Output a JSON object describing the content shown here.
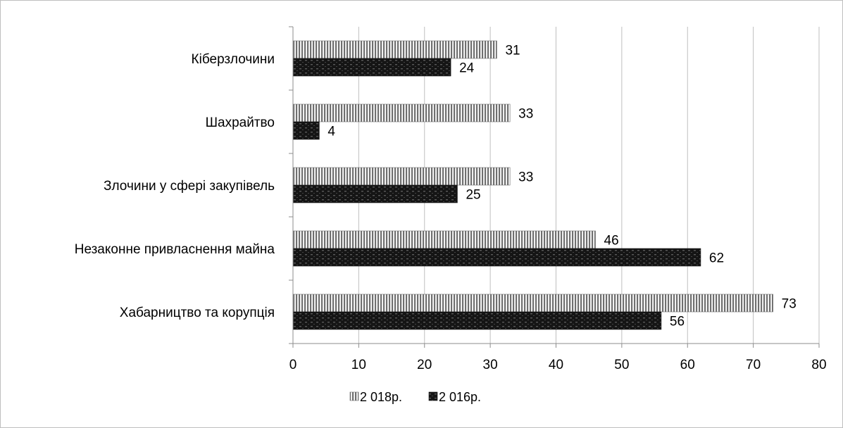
{
  "chart_data": {
    "type": "bar",
    "orientation": "horizontal",
    "categories": [
      "Кіберзлочини",
      "Шахрайтво",
      "Злочини у сфері закупівель",
      "Незаконне привласнення майна",
      "Хабарництво та корупція"
    ],
    "series": [
      {
        "name": "2 018р.",
        "values": [
          31,
          33,
          33,
          46,
          73
        ],
        "color": "#7f7f7f",
        "pattern": "vertical-stripes"
      },
      {
        "name": "2 016р.",
        "values": [
          24,
          4,
          25,
          62,
          56
        ],
        "color": "#1a1a1a",
        "pattern": "dark-dots"
      }
    ],
    "xlim": [
      0,
      80
    ],
    "xticks": [
      0,
      10,
      20,
      30,
      40,
      50,
      60,
      70,
      80
    ],
    "grid": "vertical",
    "legend": "bottom-center",
    "title": "",
    "xlabel": "",
    "ylabel": ""
  }
}
